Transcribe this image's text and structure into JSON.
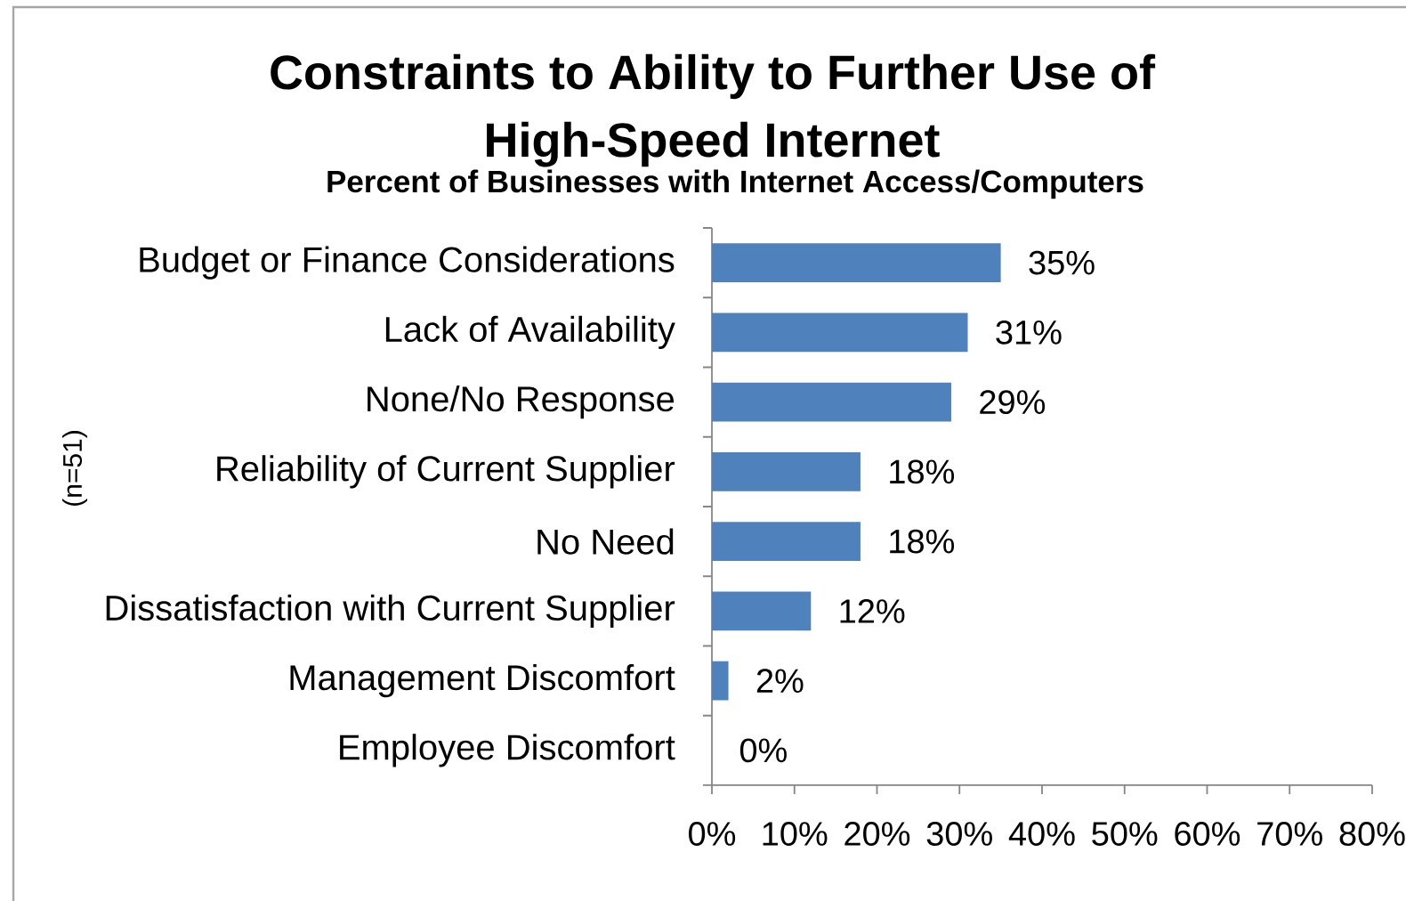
{
  "chart_data": {
    "type": "bar",
    "orientation": "horizontal",
    "title": "Constraints to Ability to Further Use of High-Speed Internet",
    "subtitle": "Percent of Businesses with Internet Access/Computers",
    "ylabel": "(n=51)",
    "categories": [
      "Budget or Finance Considerations",
      "Lack of Availability",
      "None/No Response",
      "Reliability of Current Supplier",
      "No Need",
      "Dissatisfaction with Current Supplier",
      "Management Discomfort",
      "Employee Discomfort"
    ],
    "values": [
      35,
      31,
      29,
      18,
      18,
      12,
      2,
      0
    ],
    "value_labels": [
      "35%",
      "31%",
      "29%",
      "18%",
      "18%",
      "12%",
      "2%",
      "0%"
    ],
    "color": "#4f81bd",
    "xlim": [
      0,
      80
    ],
    "xticks": [
      {
        "value": 0,
        "label": "0%"
      },
      {
        "value": 10,
        "label": "10%"
      },
      {
        "value": 20,
        "label": "20%"
      },
      {
        "value": 30,
        "label": "30%"
      },
      {
        "value": 40,
        "label": "40%"
      },
      {
        "value": 50,
        "label": "50%"
      },
      {
        "value": 60,
        "label": "60%"
      },
      {
        "value": 70,
        "label": "70%"
      },
      {
        "value": 80,
        "label": "80%"
      }
    ]
  }
}
